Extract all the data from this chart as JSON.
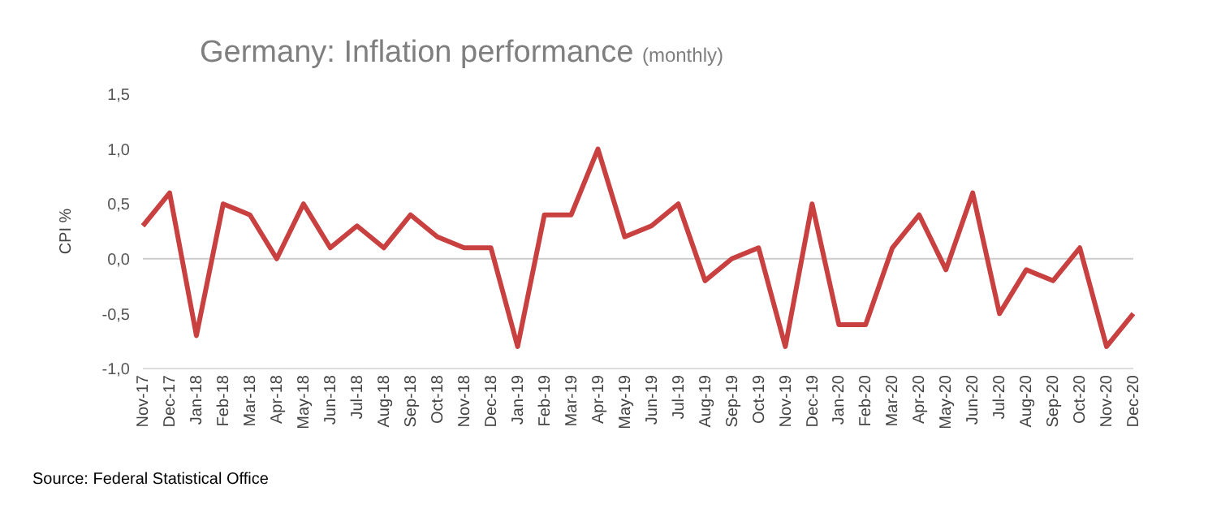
{
  "chart_data": {
    "type": "line",
    "title": "Germany: Inflation performance",
    "subtitle": "(monthly)",
    "ylabel": "CPI  %",
    "categories": [
      "Nov-17",
      "Dec-17",
      "Jan-18",
      "Feb-18",
      "Mar-18",
      "Apr-18",
      "May-18",
      "Jun-18",
      "Jul-18",
      "Aug-18",
      "Sep-18",
      "Oct-18",
      "Nov-18",
      "Dec-18",
      "Jan-19",
      "Feb-19",
      "Mar-19",
      "Apr-19",
      "May-19",
      "Jun-19",
      "Jul-19",
      "Aug-19",
      "Sep-19",
      "Oct-19",
      "Nov-19",
      "Dec-19",
      "Jan-20",
      "Feb-20",
      "Mar-20",
      "Apr-20",
      "May-20",
      "Jun-20",
      "Jul-20",
      "Aug-20",
      "Sep-20",
      "Oct-20",
      "Nov-20",
      "Dec-20"
    ],
    "series": [
      {
        "color": "#c94040",
        "values": [
          0.3,
          0.6,
          -0.7,
          0.5,
          0.4,
          0.0,
          0.5,
          0.1,
          0.3,
          0.1,
          0.4,
          0.2,
          0.1,
          0.1,
          -0.8,
          0.4,
          0.4,
          1.0,
          0.2,
          0.3,
          0.5,
          -0.2,
          0.0,
          0.1,
          -0.8,
          0.5,
          -0.6,
          -0.6,
          0.1,
          0.4,
          -0.1,
          0.6,
          -0.5,
          -0.1,
          -0.2,
          0.1,
          -0.8,
          -0.5
        ]
      }
    ],
    "ylim": [
      -1,
      1.5
    ],
    "yticks": [
      {
        "value": -1,
        "label": "-1,0"
      },
      {
        "value": -0.5,
        "label": "-0,5"
      },
      {
        "value": 0,
        "label": "0,0"
      },
      {
        "value": 0.5,
        "label": "0,5"
      },
      {
        "value": 1,
        "label": "1,0"
      },
      {
        "value": 1.5,
        "label": "1,5"
      }
    ],
    "ref_lines": [
      {
        "axis": "y",
        "value": 0,
        "color": "#cccccc"
      }
    ],
    "grid": false,
    "legend": false,
    "marker": "none",
    "line_style": "solid",
    "annotations": [
      "Source: Federal Statistical Office"
    ]
  }
}
